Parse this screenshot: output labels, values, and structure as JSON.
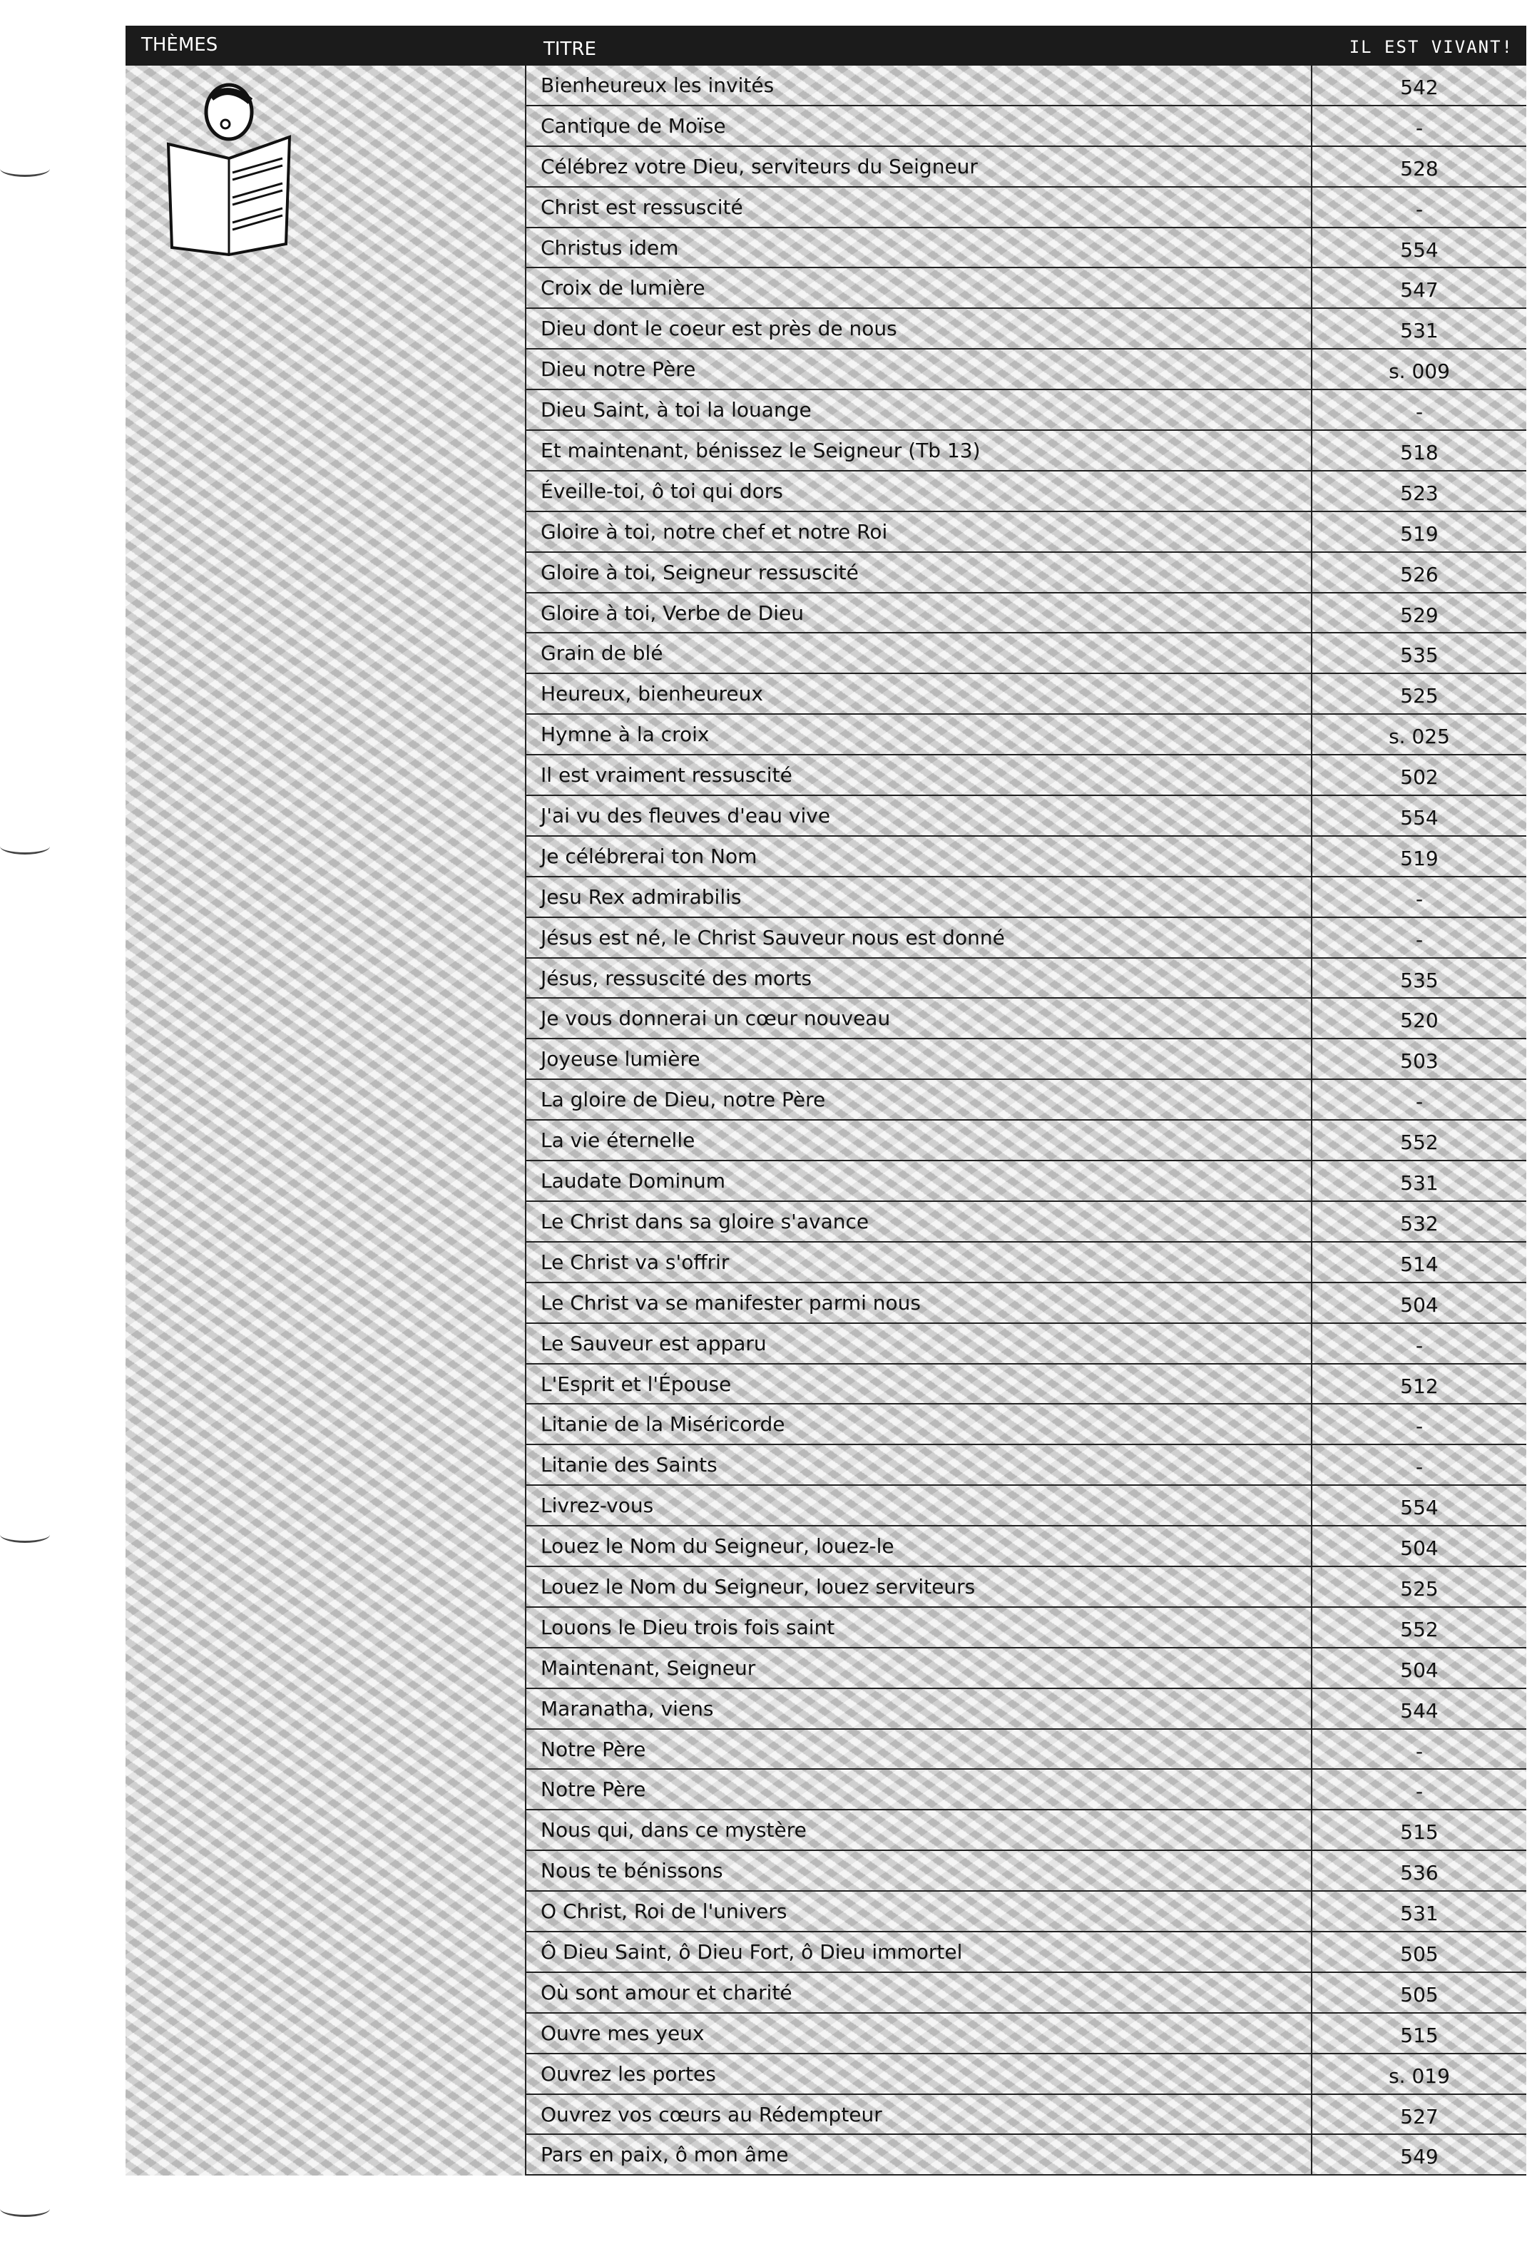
{
  "header": {
    "themes": "THÈMES",
    "title": "TITRE",
    "number": "IL EST VIVANT!"
  },
  "rows": [
    {
      "title": "Bienheureux les invités",
      "number": "542"
    },
    {
      "title": "Cantique de Moïse",
      "number": "-"
    },
    {
      "title": "Célébrez votre Dieu, serviteurs du Seigneur",
      "number": "528"
    },
    {
      "title": "Christ est ressuscité",
      "number": "-"
    },
    {
      "title": "Christus idem",
      "number": "554"
    },
    {
      "title": "Croix de lumière",
      "number": "547"
    },
    {
      "title": "Dieu dont le coeur est près de nous",
      "number": "531"
    },
    {
      "title": "Dieu notre Père",
      "number": "s. 009"
    },
    {
      "title": "Dieu Saint, à toi la louange",
      "number": "-"
    },
    {
      "title": "Et maintenant, bénissez le Seigneur (Tb 13)",
      "number": "518"
    },
    {
      "title": "Éveille-toi, ô toi qui dors",
      "number": "523"
    },
    {
      "title": "Gloire à toi, notre chef et notre Roi",
      "number": "519"
    },
    {
      "title": "Gloire à toi, Seigneur ressuscité",
      "number": "526"
    },
    {
      "title": "Gloire à toi, Verbe de Dieu",
      "number": "529"
    },
    {
      "title": "Grain de blé",
      "number": "535"
    },
    {
      "title": "Heureux, bienheureux",
      "number": "525"
    },
    {
      "title": "Hymne à la croix",
      "number": "s. 025"
    },
    {
      "title": "Il est vraiment ressuscité",
      "number": "502"
    },
    {
      "title": "J'ai vu des fleuves d'eau vive",
      "number": "554"
    },
    {
      "title": "Je célébrerai ton Nom",
      "number": "519"
    },
    {
      "title": "Jesu Rex admirabilis",
      "number": "-"
    },
    {
      "title": "Jésus est né, le Christ Sauveur nous est donné",
      "number": "-"
    },
    {
      "title": "Jésus, ressuscité des morts",
      "number": "535"
    },
    {
      "title": "Je vous donnerai un cœur nouveau",
      "number": "520"
    },
    {
      "title": "Joyeuse lumière",
      "number": "503"
    },
    {
      "title": "La gloire de Dieu, notre Père",
      "number": "-"
    },
    {
      "title": "La vie éternelle",
      "number": "552"
    },
    {
      "title": "Laudate Dominum",
      "number": "531"
    },
    {
      "title": "Le Christ dans sa gloire s'avance",
      "number": "532"
    },
    {
      "title": "Le Christ va s'offrir",
      "number": "514"
    },
    {
      "title": "Le Christ va se manifester parmi nous",
      "number": "504"
    },
    {
      "title": "Le Sauveur est apparu",
      "number": "-"
    },
    {
      "title": "L'Esprit et l'Épouse",
      "number": "512"
    },
    {
      "title": "Litanie de la Miséricorde",
      "number": "-"
    },
    {
      "title": "Litanie des Saints",
      "number": "-"
    },
    {
      "title": "Livrez-vous",
      "number": "554"
    },
    {
      "title": "Louez le Nom du Seigneur, louez-le",
      "number": "504"
    },
    {
      "title": "Louez le Nom du Seigneur, louez serviteurs",
      "number": "525"
    },
    {
      "title": "Louons le Dieu trois fois saint",
      "number": "552"
    },
    {
      "title": "Maintenant, Seigneur",
      "number": "504"
    },
    {
      "title": "Maranatha, viens",
      "number": "544"
    },
    {
      "title": "Notre Père",
      "number": "-"
    },
    {
      "title": "Notre Père",
      "number": "-"
    },
    {
      "title": "Nous qui, dans ce mystère",
      "number": "515"
    },
    {
      "title": "Nous te bénissons",
      "number": "536"
    },
    {
      "title": "O Christ, Roi de l'univers",
      "number": "531"
    },
    {
      "title": "Ô Dieu Saint, ô Dieu Fort, ô Dieu immortel",
      "number": "505"
    },
    {
      "title": "Où sont amour et charité",
      "number": "505"
    },
    {
      "title": "Ouvre mes yeux",
      "number": "515"
    },
    {
      "title": "Ouvrez les portes",
      "number": "s. 019"
    },
    {
      "title": "Ouvrez vos cœurs au Rédempteur",
      "number": "527"
    },
    {
      "title": "Pars en paix, ô mon âme",
      "number": "549"
    }
  ]
}
